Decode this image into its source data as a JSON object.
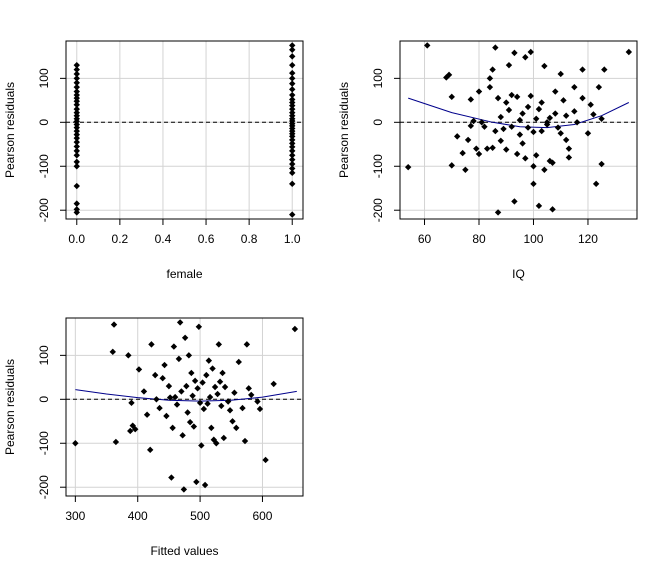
{
  "chart_data": [
    {
      "type": "scatter",
      "title": "",
      "xlabel": "female",
      "ylabel": "Pearson residuals",
      "xlim": [
        -0.05,
        1.05
      ],
      "ylim": [
        -220,
        185
      ],
      "xticks": [
        0.0,
        0.2,
        0.4,
        0.6,
        0.8,
        1.0
      ],
      "xtick_labels": [
        "0.0",
        "0.2",
        "0.4",
        "0.6",
        "0.8",
        "1.0"
      ],
      "yticks": [
        -200,
        -100,
        0,
        100
      ],
      "ytick_labels": [
        "-200",
        "-100",
        "0",
        "100"
      ],
      "grid": true,
      "reference_line": {
        "y": 0,
        "style": "dashed",
        "color": "#000000"
      },
      "smooth_line": null,
      "point_color": "#000000",
      "points": [
        [
          0,
          130
        ],
        [
          0,
          120
        ],
        [
          0,
          110
        ],
        [
          0,
          100
        ],
        [
          0,
          90
        ],
        [
          0,
          80
        ],
        [
          0,
          70
        ],
        [
          0,
          62
        ],
        [
          0,
          55
        ],
        [
          0,
          48
        ],
        [
          0,
          40
        ],
        [
          0,
          30
        ],
        [
          0,
          22
        ],
        [
          0,
          15
        ],
        [
          0,
          8
        ],
        [
          0,
          2
        ],
        [
          0,
          -5
        ],
        [
          0,
          -12
        ],
        [
          0,
          -20
        ],
        [
          0,
          -28
        ],
        [
          0,
          -36
        ],
        [
          0,
          -45
        ],
        [
          0,
          -55
        ],
        [
          0,
          -65
        ],
        [
          0,
          -75
        ],
        [
          0,
          -90
        ],
        [
          0,
          -100
        ],
        [
          0,
          -145
        ],
        [
          0,
          -185
        ],
        [
          0,
          -198
        ],
        [
          0,
          -205
        ],
        [
          1,
          175
        ],
        [
          1,
          165
        ],
        [
          1,
          150
        ],
        [
          1,
          130
        ],
        [
          1,
          112
        ],
        [
          1,
          100
        ],
        [
          1,
          88
        ],
        [
          1,
          75
        ],
        [
          1,
          62
        ],
        [
          1,
          52
        ],
        [
          1,
          45
        ],
        [
          1,
          38
        ],
        [
          1,
          30
        ],
        [
          1,
          22
        ],
        [
          1,
          15
        ],
        [
          1,
          8
        ],
        [
          1,
          3
        ],
        [
          1,
          -3
        ],
        [
          1,
          -8
        ],
        [
          1,
          -14
        ],
        [
          1,
          -20
        ],
        [
          1,
          -26
        ],
        [
          1,
          -32
        ],
        [
          1,
          -40
        ],
        [
          1,
          -48
        ],
        [
          1,
          -56
        ],
        [
          1,
          -65
        ],
        [
          1,
          -75
        ],
        [
          1,
          -85
        ],
        [
          1,
          -95
        ],
        [
          1,
          -105
        ],
        [
          1,
          -115
        ],
        [
          1,
          -140
        ],
        [
          1,
          -210
        ]
      ]
    },
    {
      "type": "scatter",
      "title": "",
      "xlabel": "IQ",
      "ylabel": "Pearson residuals",
      "xlim": [
        51,
        138
      ],
      "ylim": [
        -220,
        185
      ],
      "xticks": [
        60,
        80,
        100,
        120
      ],
      "xtick_labels": [
        "60",
        "80",
        "100",
        "120"
      ],
      "yticks": [
        -200,
        -100,
        0,
        100
      ],
      "ytick_labels": [
        "-200",
        "-100",
        "0",
        "100"
      ],
      "grid": true,
      "reference_line": {
        "y": 0,
        "style": "dashed",
        "color": "#000000"
      },
      "smooth_line": {
        "color": "#00008b",
        "x": [
          54,
          70,
          85,
          95,
          105,
          115,
          125,
          135
        ],
        "y": [
          55,
          22,
          0,
          -10,
          -12,
          -5,
          15,
          45
        ]
      },
      "point_color": "#000000",
      "points": [
        [
          54,
          -102
        ],
        [
          61,
          175
        ],
        [
          68,
          102
        ],
        [
          69,
          108
        ],
        [
          70,
          -98
        ],
        [
          70,
          58
        ],
        [
          72,
          -32
        ],
        [
          74,
          -70
        ],
        [
          75,
          -108
        ],
        [
          76,
          -40
        ],
        [
          77,
          52
        ],
        [
          77,
          -8
        ],
        [
          78,
          3
        ],
        [
          79,
          -60
        ],
        [
          80,
          70
        ],
        [
          80,
          -72
        ],
        [
          81,
          0
        ],
        [
          82,
          -10
        ],
        [
          83,
          -60
        ],
        [
          84,
          80
        ],
        [
          84,
          100
        ],
        [
          85,
          120
        ],
        [
          85,
          -58
        ],
        [
          86,
          170
        ],
        [
          86,
          -20
        ],
        [
          87,
          55
        ],
        [
          87,
          -205
        ],
        [
          88,
          12
        ],
        [
          88,
          -42
        ],
        [
          89,
          -15
        ],
        [
          90,
          45
        ],
        [
          90,
          -62
        ],
        [
          91,
          28
        ],
        [
          91,
          130
        ],
        [
          92,
          62
        ],
        [
          92,
          -10
        ],
        [
          93,
          158
        ],
        [
          93,
          -180
        ],
        [
          94,
          58
        ],
        [
          94,
          -72
        ],
        [
          95,
          5
        ],
        [
          95,
          -28
        ],
        [
          96,
          20
        ],
        [
          96,
          -48
        ],
        [
          97,
          148
        ],
        [
          97,
          -82
        ],
        [
          98,
          35
        ],
        [
          98,
          -12
        ],
        [
          99,
          160
        ],
        [
          99,
          60
        ],
        [
          100,
          -22
        ],
        [
          100,
          -100
        ],
        [
          100,
          -140
        ],
        [
          101,
          8
        ],
        [
          101,
          -75
        ],
        [
          102,
          30
        ],
        [
          102,
          -190
        ],
        [
          103,
          45
        ],
        [
          103,
          -20
        ],
        [
          104,
          128
        ],
        [
          104,
          -108
        ],
        [
          105,
          0
        ],
        [
          105,
          -5
        ],
        [
          106,
          10
        ],
        [
          106,
          -88
        ],
        [
          107,
          -92
        ],
        [
          107,
          -198
        ],
        [
          108,
          70
        ],
        [
          108,
          20
        ],
        [
          109,
          -12
        ],
        [
          110,
          110
        ],
        [
          110,
          -25
        ],
        [
          111,
          50
        ],
        [
          112,
          15
        ],
        [
          112,
          -40
        ],
        [
          113,
          -60
        ],
        [
          113,
          -80
        ],
        [
          115,
          80
        ],
        [
          115,
          25
        ],
        [
          116,
          0
        ],
        [
          118,
          55
        ],
        [
          118,
          120
        ],
        [
          120,
          -25
        ],
        [
          121,
          40
        ],
        [
          122,
          18
        ],
        [
          123,
          -140
        ],
        [
          124,
          80
        ],
        [
          125,
          8
        ],
        [
          125,
          -95
        ],
        [
          126,
          120
        ],
        [
          135,
          160
        ]
      ]
    },
    {
      "type": "scatter",
      "title": "",
      "xlabel": "Fitted values",
      "ylabel": "Pearson residuals",
      "xlim": [
        285,
        665
      ],
      "ylim": [
        -220,
        185
      ],
      "xticks": [
        300,
        400,
        500,
        600
      ],
      "xtick_labels": [
        "300",
        "400",
        "500",
        "600"
      ],
      "yticks": [
        -200,
        -100,
        0,
        100
      ],
      "ytick_labels": [
        "-200",
        "-100",
        "0",
        "100"
      ],
      "grid": true,
      "reference_line": {
        "y": 0,
        "style": "dashed",
        "color": "#000000"
      },
      "smooth_line": {
        "color": "#00008b",
        "x": [
          300,
          350,
          400,
          450,
          500,
          550,
          600,
          655
        ],
        "y": [
          22,
          12,
          4,
          -2,
          -4,
          -2,
          5,
          18
        ]
      },
      "point_color": "#000000",
      "points": [
        [
          300,
          -100
        ],
        [
          360,
          108
        ],
        [
          362,
          170
        ],
        [
          365,
          -97
        ],
        [
          385,
          100
        ],
        [
          388,
          -72
        ],
        [
          390,
          -8
        ],
        [
          392,
          -60
        ],
        [
          396,
          -68
        ],
        [
          402,
          68
        ],
        [
          410,
          18
        ],
        [
          415,
          -35
        ],
        [
          420,
          -115
        ],
        [
          422,
          125
        ],
        [
          428,
          55
        ],
        [
          430,
          0
        ],
        [
          435,
          -20
        ],
        [
          440,
          48
        ],
        [
          443,
          78
        ],
        [
          446,
          -38
        ],
        [
          450,
          30
        ],
        [
          452,
          4
        ],
        [
          454,
          -178
        ],
        [
          456,
          -65
        ],
        [
          458,
          120
        ],
        [
          460,
          5
        ],
        [
          463,
          -12
        ],
        [
          466,
          92
        ],
        [
          468,
          175
        ],
        [
          470,
          18
        ],
        [
          472,
          -82
        ],
        [
          474,
          -205
        ],
        [
          476,
          140
        ],
        [
          478,
          30
        ],
        [
          480,
          -30
        ],
        [
          482,
          100
        ],
        [
          484,
          -52
        ],
        [
          486,
          60
        ],
        [
          488,
          8
        ],
        [
          490,
          -62
        ],
        [
          492,
          42
        ],
        [
          494,
          -188
        ],
        [
          496,
          25
        ],
        [
          498,
          165
        ],
        [
          500,
          -8
        ],
        [
          502,
          -105
        ],
        [
          504,
          38
        ],
        [
          506,
          -22
        ],
        [
          508,
          -195
        ],
        [
          510,
          55
        ],
        [
          512,
          -10
        ],
        [
          514,
          88
        ],
        [
          516,
          5
        ],
        [
          518,
          -65
        ],
        [
          520,
          70
        ],
        [
          522,
          -92
        ],
        [
          524,
          28
        ],
        [
          526,
          -100
        ],
        [
          528,
          12
        ],
        [
          530,
          125
        ],
        [
          532,
          40
        ],
        [
          534,
          -15
        ],
        [
          536,
          60
        ],
        [
          538,
          -88
        ],
        [
          540,
          28
        ],
        [
          545,
          -5
        ],
        [
          548,
          -25
        ],
        [
          552,
          -50
        ],
        [
          555,
          15
        ],
        [
          558,
          -65
        ],
        [
          562,
          85
        ],
        [
          568,
          -20
        ],
        [
          572,
          -95
        ],
        [
          575,
          125
        ],
        [
          578,
          25
        ],
        [
          582,
          10
        ],
        [
          592,
          -5
        ],
        [
          596,
          -22
        ],
        [
          605,
          -138
        ],
        [
          618,
          35
        ],
        [
          652,
          160
        ]
      ]
    }
  ]
}
